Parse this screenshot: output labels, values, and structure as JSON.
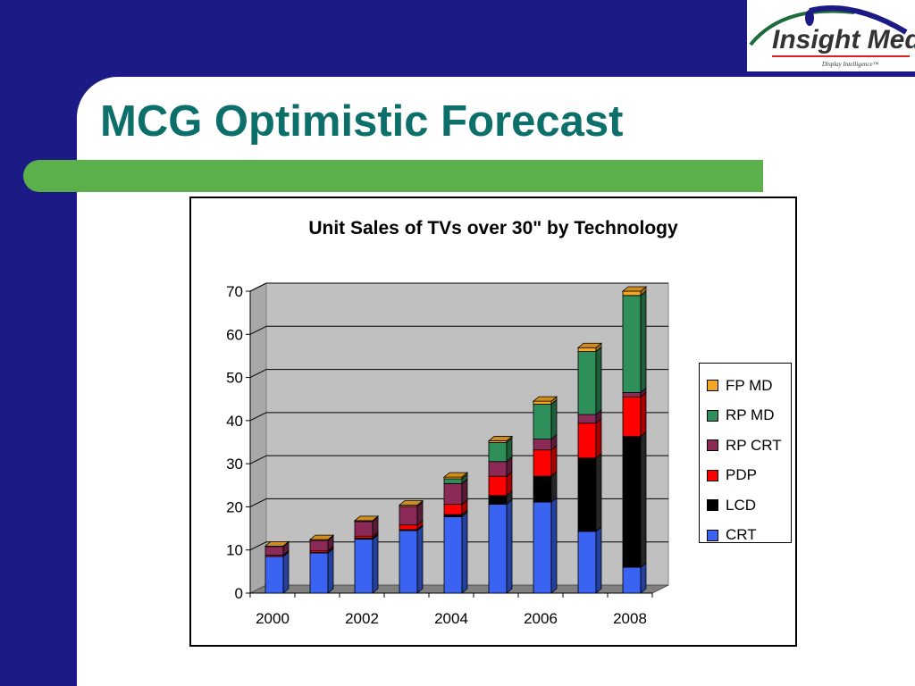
{
  "slide": {
    "title": "MCG Optimistic Forecast",
    "logo": {
      "name": "Insight Media",
      "tagline": "Display Intelligence™"
    }
  },
  "colors": {
    "background": "#1c1a84",
    "title": "#0d6f6a",
    "accent_bar": "#5cb04c",
    "plot_back": "#c0c0c0",
    "plot_floor": "#808080"
  },
  "chart_data": {
    "type": "bar",
    "stacked": true,
    "three_d": true,
    "title": "Unit Sales of TVs over 30\" by Technology",
    "xlabel": "",
    "ylabel": "",
    "categories": [
      "2000",
      "2001",
      "2002",
      "2003",
      "2004",
      "2005",
      "2006",
      "2007",
      "2008"
    ],
    "x_tick_labels": [
      "2000",
      "",
      "2002",
      "",
      "2004",
      "",
      "2006",
      "",
      "2008"
    ],
    "ylim": [
      0,
      70
    ],
    "yticks": [
      0,
      10,
      20,
      30,
      40,
      50,
      60,
      70
    ],
    "grid": true,
    "legend_position": "right",
    "series": [
      {
        "name": "CRT",
        "color": "#3a63f2",
        "values": [
          8.5,
          9.3,
          12.5,
          14.5,
          17.7,
          20.6,
          21.1,
          14.3,
          6
        ]
      },
      {
        "name": "LCD",
        "color": "#000000",
        "values": [
          0,
          0.1,
          0.2,
          0.2,
          0.5,
          2,
          6,
          17,
          30.3
        ]
      },
      {
        "name": "PDP",
        "color": "#ff0000",
        "values": [
          0.3,
          0.4,
          0.5,
          1.1,
          2.4,
          4.5,
          6.1,
          8.1,
          9.2
        ]
      },
      {
        "name": "RP CRT",
        "color": "#8b2a57",
        "values": [
          2,
          2.4,
          3.4,
          4.3,
          4.8,
          3.4,
          2.5,
          2,
          1
        ]
      },
      {
        "name": "RP MD",
        "color": "#2f8f5a",
        "values": [
          0,
          0,
          0,
          0,
          1.1,
          4.4,
          8.1,
          14.6,
          22.5
        ]
      },
      {
        "name": "FP MD",
        "color": "#f5a623",
        "values": [
          0.1,
          0.2,
          0.2,
          0.3,
          0.4,
          0.4,
          0.7,
          0.9,
          1
        ]
      }
    ]
  }
}
